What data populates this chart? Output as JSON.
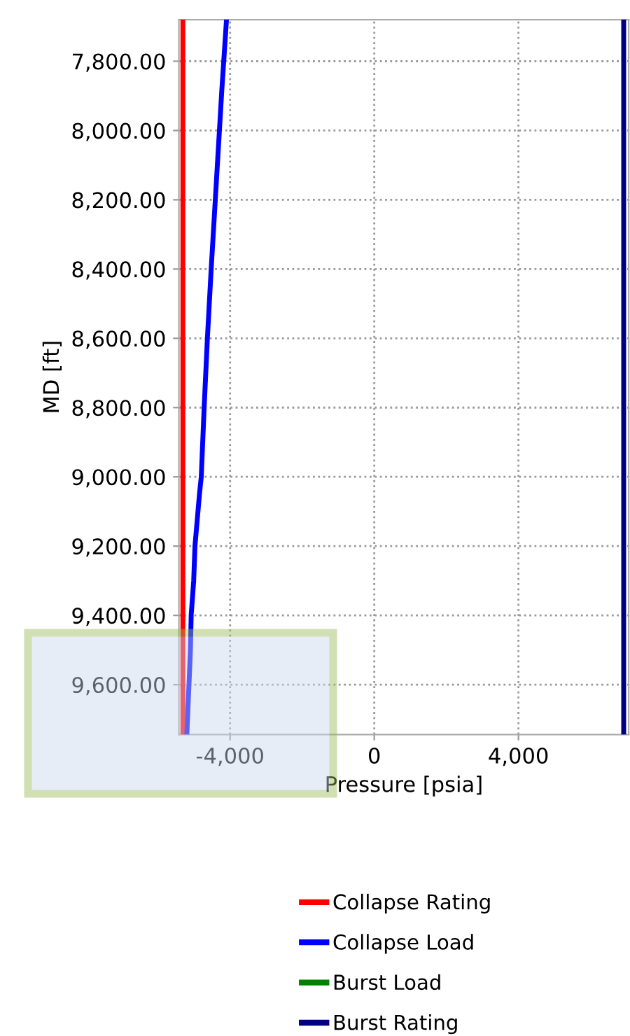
{
  "chart_data": {
    "type": "line",
    "xlabel": "Pressure [psia]",
    "ylabel": "MD [ft]",
    "xlim": [
      -5420,
      7060
    ],
    "xticks": [
      {
        "value": -4000,
        "label": "-4,000"
      },
      0,
      {
        "value": 4000,
        "label": "4,000"
      }
    ],
    "ylim": [
      9744,
      7680
    ],
    "yticks": [
      {
        "value": 7800,
        "label": "7,800.00"
      },
      {
        "value": 8000,
        "label": "8,000.00"
      },
      {
        "value": 8200,
        "label": "8,200.00"
      },
      {
        "value": 8400,
        "label": "8,400.00"
      },
      {
        "value": 8600,
        "label": "8,600.00"
      },
      {
        "value": 8800,
        "label": "8,800.00"
      },
      {
        "value": 9000,
        "label": "9,000.00"
      },
      {
        "value": 9200,
        "label": "9,200.00"
      },
      {
        "value": 9400,
        "label": "9,400.00"
      },
      {
        "value": 9600,
        "label": "9,600.00"
      }
    ],
    "grid": true,
    "legend": "bottom",
    "line_style": "solid",
    "marker": "none",
    "series": [
      {
        "name": "Collapse Rating",
        "color": "#ff0000",
        "x": [
          -5310,
          -5310
        ],
        "values": [
          7680,
          9744
        ]
      },
      {
        "name": "Collapse Load",
        "color": "#0000ff",
        "x": [
          -4100,
          -4230,
          -4525,
          -4630,
          -4720,
          -4800,
          -4850,
          -4975,
          -5010,
          -5080,
          -5100,
          -5200
        ],
        "values": [
          7680,
          7884,
          8400,
          8600,
          8800,
          9000,
          9050,
          9200,
          9300,
          9400,
          9500,
          9744
        ]
      },
      {
        "name": "Burst Load",
        "color": "#008000",
        "x": [
          null
        ],
        "values": [
          null
        ]
      },
      {
        "name": "Burst Rating",
        "color": "#000080",
        "x": [
          6920,
          6920
        ],
        "values": [
          7680,
          9744
        ]
      }
    ]
  }
}
